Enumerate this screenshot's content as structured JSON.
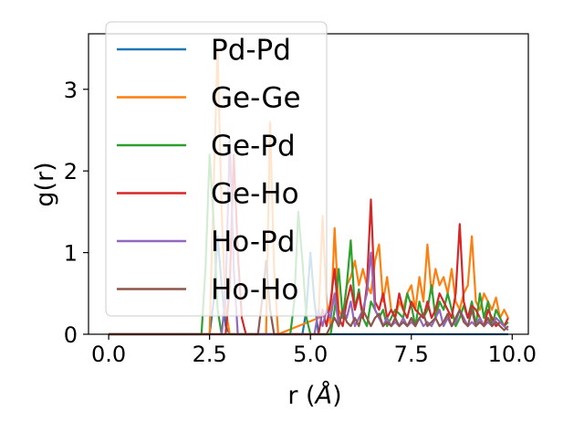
{
  "chart_data": {
    "type": "line",
    "xlabel": "r (",
    "xlabel_unit": "Å",
    "xlabel_close": ")",
    "ylabel": "g(r)",
    "xlim": [
      -0.5,
      10.4
    ],
    "ylim": [
      0,
      3.68
    ],
    "xticks": [
      0.0,
      2.5,
      5.0,
      7.5,
      10.0
    ],
    "xtick_labels": [
      "0.0",
      "2.5",
      "5.0",
      "7.5",
      "10.0"
    ],
    "yticks": [
      0,
      1,
      2,
      3
    ],
    "ytick_labels": [
      "0",
      "1",
      "2",
      "3"
    ],
    "grid": false,
    "legend_position": "top-left",
    "series": [
      {
        "name": "Pd-Pd",
        "color": "#1f77b4",
        "x": [
          0,
          2.5,
          2.6,
          2.7,
          2.8,
          2.9,
          3.0,
          4.8,
          4.9,
          5.0,
          5.1,
          5.2,
          9.9
        ],
        "y": [
          0,
          0,
          0.4,
          1.2,
          0.6,
          0.1,
          0,
          0,
          0.3,
          1.0,
          0.4,
          0,
          0
        ]
      },
      {
        "name": "Ge-Ge",
        "color": "#ff7f0e",
        "x": [
          0,
          2.5,
          2.6,
          2.7,
          2.8,
          2.9,
          3.0,
          3.9,
          4.0,
          4.1,
          4.2,
          5.2,
          5.3,
          5.4,
          5.5,
          5.6,
          5.7,
          5.8,
          5.9,
          6.0,
          6.1,
          6.2,
          6.3,
          6.4,
          6.5,
          6.6,
          6.7,
          6.8,
          6.9,
          7.0,
          7.1,
          7.2,
          7.3,
          7.4,
          7.5,
          7.6,
          7.7,
          7.8,
          7.9,
          8.0,
          8.1,
          8.2,
          8.3,
          8.4,
          8.5,
          8.6,
          8.7,
          8.8,
          8.9,
          9.0,
          9.1,
          9.2,
          9.3,
          9.4,
          9.5,
          9.6,
          9.7,
          9.8,
          9.9
        ],
        "y": [
          0,
          0,
          1.8,
          3.5,
          1.5,
          0.3,
          0,
          0,
          2.6,
          0.8,
          0,
          0.2,
          1.45,
          0.4,
          0.1,
          1.3,
          0.3,
          0.2,
          0.6,
          0.7,
          0.9,
          0.6,
          0.8,
          0.6,
          0.5,
          0.9,
          1.1,
          0.4,
          0.7,
          0.3,
          0.2,
          0.4,
          0.3,
          0.5,
          0.6,
          0.3,
          0.7,
          0.4,
          1.1,
          0.5,
          0.8,
          0.6,
          0.7,
          0.5,
          0.8,
          0.4,
          0.3,
          0.5,
          0.6,
          1.2,
          0.4,
          0.3,
          0.5,
          0.4,
          0.3,
          0.45,
          0.2,
          0.3,
          0.2
        ]
      },
      {
        "name": "Ge-Pd",
        "color": "#2ca02c",
        "x": [
          0,
          2.3,
          2.4,
          2.5,
          2.6,
          2.7,
          2.8,
          4.5,
          4.6,
          4.7,
          4.8,
          4.9,
          5.0,
          5.5,
          5.6,
          5.7,
          5.8,
          5.9,
          6.0,
          6.1,
          6.2,
          6.3,
          6.4,
          6.5,
          6.6,
          6.7,
          6.8,
          6.9,
          7.0,
          7.1,
          7.2,
          7.3,
          7.4,
          7.5,
          7.6,
          7.7,
          7.8,
          7.9,
          8.0,
          8.1,
          8.2,
          8.3,
          8.4,
          8.5,
          8.6,
          8.7,
          8.8,
          8.9,
          9.0,
          9.1,
          9.2,
          9.3,
          9.4,
          9.5,
          9.6,
          9.7,
          9.8,
          9.9
        ],
        "y": [
          0,
          0,
          0.8,
          2.2,
          1.4,
          0.3,
          0,
          0,
          0.4,
          1.5,
          0.9,
          0.2,
          0,
          0,
          0.3,
          0.8,
          0.2,
          0.6,
          1.15,
          0.3,
          0.55,
          0.2,
          0.1,
          0.4,
          0.3,
          0.2,
          0.3,
          0.1,
          0.2,
          0.3,
          0.25,
          0.2,
          0.5,
          0.35,
          0.1,
          0.4,
          0.2,
          0.3,
          0.6,
          0.2,
          0.4,
          0.3,
          0.5,
          0.3,
          0.1,
          0.2,
          0.35,
          0.2,
          0.4,
          0.1,
          0.5,
          0.2,
          0.4,
          0.1,
          0.3,
          0.2,
          0.1,
          0.15
        ]
      },
      {
        "name": "Ge-Ho",
        "color": "#d62728",
        "x": [
          0,
          2.9,
          3.0,
          3.1,
          3.2,
          3.3,
          3.4,
          5.2,
          5.3,
          5.4,
          5.5,
          5.6,
          5.7,
          5.8,
          5.9,
          6.0,
          6.1,
          6.2,
          6.3,
          6.4,
          6.5,
          6.6,
          6.7,
          6.8,
          6.9,
          7.0,
          7.1,
          7.2,
          7.3,
          7.4,
          7.5,
          7.6,
          7.7,
          7.8,
          7.9,
          8.0,
          8.1,
          8.2,
          8.3,
          8.4,
          8.5,
          8.6,
          8.7,
          8.8,
          8.9,
          9.0,
          9.1,
          9.2,
          9.3,
          9.4,
          9.5,
          9.6,
          9.7,
          9.8,
          9.9
        ],
        "y": [
          0,
          0,
          0.6,
          2.2,
          1.0,
          0.2,
          0,
          0,
          0.3,
          0.1,
          0.4,
          0.8,
          0.2,
          0.1,
          0.4,
          0.6,
          0.3,
          0.5,
          0.2,
          0.6,
          1.65,
          0.4,
          0.3,
          0.5,
          0.2,
          0.3,
          0.2,
          0.5,
          0.3,
          0.2,
          0.4,
          0.3,
          0.25,
          0.2,
          0.4,
          0.2,
          0.3,
          0.5,
          0.4,
          0.3,
          0.2,
          0.5,
          1.35,
          0.4,
          0.2,
          0.35,
          0.3,
          0.2,
          0.1,
          0.3,
          0.2,
          0.1,
          0.15,
          0.1,
          0.2
        ]
      },
      {
        "name": "Ho-Pd",
        "color": "#9467bd",
        "x": [
          0,
          2.8,
          2.9,
          3.0,
          3.1,
          3.2,
          5.1,
          5.2,
          5.3,
          5.4,
          5.5,
          5.6,
          5.7,
          5.8,
          5.9,
          6.0,
          6.1,
          6.2,
          6.3,
          6.4,
          6.5,
          6.6,
          6.7,
          6.8,
          6.9,
          7.0,
          7.1,
          7.2,
          7.3,
          7.4,
          7.5,
          7.6,
          7.7,
          7.8,
          7.9,
          8.0,
          8.1,
          8.2,
          8.3,
          8.4,
          8.5,
          8.6,
          8.7,
          8.8,
          8.9,
          9.0,
          9.1,
          9.2,
          9.3,
          9.4,
          9.5,
          9.6,
          9.7,
          9.8,
          9.9
        ],
        "y": [
          0,
          0,
          0.5,
          2.4,
          0.8,
          0,
          0,
          0.3,
          0.1,
          0.3,
          0.2,
          0.5,
          0.1,
          0.3,
          0.2,
          0.4,
          0.1,
          0.2,
          0.3,
          0.5,
          1.0,
          0.3,
          0.2,
          0.1,
          0.2,
          0.1,
          0.15,
          0.1,
          0.2,
          0.1,
          0.15,
          0.1,
          0.2,
          0.1,
          0.15,
          0.1,
          0.2,
          0.3,
          0.1,
          0.2,
          0.1,
          0.15,
          0.3,
          0.2,
          0.1,
          0.15,
          0.1,
          0.2,
          0.1,
          0.15,
          0.1,
          0.2,
          0.15,
          0.1,
          0.05
        ]
      },
      {
        "name": "Ho-Ho",
        "color": "#8c564b",
        "x": [
          0,
          3.7,
          3.8,
          3.9,
          4.0,
          4.1,
          5.4,
          5.5,
          5.6,
          5.7,
          5.8,
          5.9,
          6.0,
          6.1,
          6.2,
          6.3,
          6.4,
          6.5,
          6.6,
          6.7,
          6.8,
          6.9,
          7.0,
          7.1,
          7.2,
          7.3,
          7.4,
          7.5,
          7.6,
          7.7,
          7.8,
          7.9,
          8.0,
          8.1,
          8.2,
          8.3,
          8.4,
          8.5,
          8.6,
          8.7,
          8.8,
          8.9,
          9.0,
          9.1,
          9.2,
          9.3,
          9.4,
          9.5,
          9.6,
          9.7,
          9.8,
          9.9
        ],
        "y": [
          0,
          0,
          0.4,
          0.9,
          0.3,
          0,
          0,
          0.1,
          0.2,
          0.1,
          0.3,
          0.15,
          0.1,
          0.2,
          0.1,
          0.3,
          0.2,
          0.1,
          0.2,
          0.25,
          0.1,
          0.15,
          0.1,
          0.2,
          0.1,
          0.15,
          0.1,
          0.2,
          0.1,
          0.2,
          0.25,
          0.1,
          0.15,
          0.2,
          0.1,
          0.15,
          0.25,
          0.1,
          0.2,
          0.3,
          0.15,
          0.1,
          0.3,
          0.1,
          0.15,
          0.1,
          0.2,
          0.1,
          0.15,
          0.1,
          0.05,
          0.1
        ]
      }
    ]
  }
}
